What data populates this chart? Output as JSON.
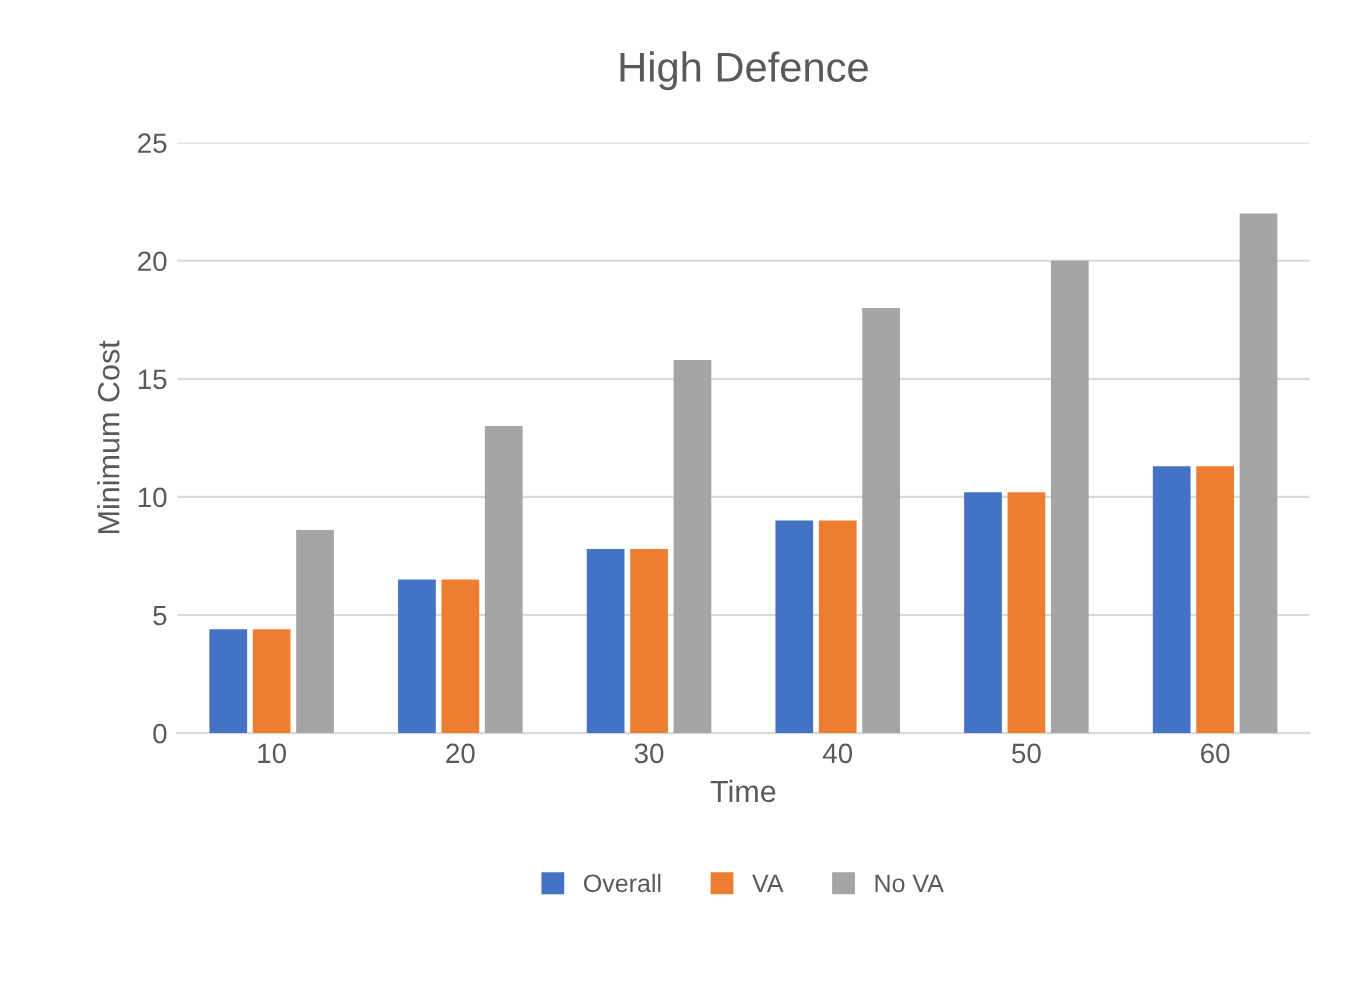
{
  "chart_data": {
    "type": "bar",
    "title": "High Defence",
    "xlabel": "Time",
    "ylabel": "Minimum Cost",
    "categories": [
      "10",
      "20",
      "30",
      "40",
      "50",
      "60"
    ],
    "series": [
      {
        "name": "Overall",
        "color": "#4472c4",
        "values": [
          4.4,
          6.5,
          7.8,
          9.0,
          10.2,
          11.3
        ]
      },
      {
        "name": "VA",
        "color": "#ed7d31",
        "values": [
          4.4,
          6.5,
          7.8,
          9.0,
          10.2,
          11.3
        ]
      },
      {
        "name": "No VA",
        "color": "#a5a5a5",
        "values": [
          8.6,
          13.0,
          15.8,
          18.0,
          20.0,
          22.0
        ]
      }
    ],
    "ylim": [
      0,
      25
    ],
    "yticks": [
      0,
      5,
      10,
      15,
      20,
      25
    ],
    "grid": "y",
    "legend": "bottom"
  }
}
